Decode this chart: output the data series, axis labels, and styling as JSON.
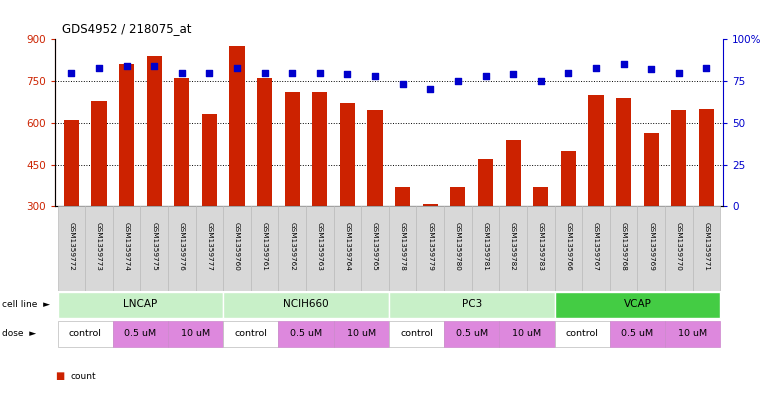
{
  "title": "GDS4952 / 218075_at",
  "samples": [
    "GSM1359772",
    "GSM1359773",
    "GSM1359774",
    "GSM1359775",
    "GSM1359776",
    "GSM1359777",
    "GSM1359760",
    "GSM1359761",
    "GSM1359762",
    "GSM1359763",
    "GSM1359764",
    "GSM1359765",
    "GSM1359778",
    "GSM1359779",
    "GSM1359780",
    "GSM1359781",
    "GSM1359782",
    "GSM1359783",
    "GSM1359766",
    "GSM1359767",
    "GSM1359768",
    "GSM1359769",
    "GSM1359770",
    "GSM1359771"
  ],
  "counts": [
    610,
    680,
    810,
    840,
    760,
    630,
    875,
    760,
    710,
    710,
    670,
    645,
    370,
    310,
    370,
    470,
    540,
    370,
    500,
    700,
    690,
    565,
    645,
    650
  ],
  "percentiles": [
    80,
    83,
    84,
    84,
    80,
    80,
    83,
    80,
    80,
    80,
    79,
    78,
    73,
    70,
    75,
    78,
    79,
    75,
    80,
    83,
    85,
    82,
    80,
    83
  ],
  "bar_color": "#cc2200",
  "dot_color": "#0000cc",
  "ylim_left": [
    300,
    900
  ],
  "ylim_right": [
    0,
    100
  ],
  "yticks_left": [
    300,
    450,
    600,
    750,
    900
  ],
  "yticks_right": [
    0,
    25,
    50,
    75,
    100
  ],
  "ytick_labels_right": [
    "0",
    "25",
    "50",
    "75",
    "100%"
  ],
  "grid_lines": [
    450,
    600,
    750
  ],
  "cell_line_groups": [
    {
      "name": "LNCAP",
      "start": 0,
      "end": 5,
      "color": "#c8f0c8"
    },
    {
      "name": "NCIH660",
      "start": 6,
      "end": 11,
      "color": "#c8f0c8"
    },
    {
      "name": "PC3",
      "start": 12,
      "end": 17,
      "color": "#c8f0c8"
    },
    {
      "name": "VCAP",
      "start": 18,
      "end": 23,
      "color": "#44cc44"
    }
  ],
  "dose_groups": [
    {
      "name": "control",
      "start": 0,
      "end": 1,
      "color": "#ffffff"
    },
    {
      "name": "0.5 uM",
      "start": 2,
      "end": 3,
      "color": "#dd88dd"
    },
    {
      "name": "10 uM",
      "start": 4,
      "end": 5,
      "color": "#dd88dd"
    },
    {
      "name": "control",
      "start": 6,
      "end": 7,
      "color": "#ffffff"
    },
    {
      "name": "0.5 uM",
      "start": 8,
      "end": 9,
      "color": "#dd88dd"
    },
    {
      "name": "10 uM",
      "start": 10,
      "end": 11,
      "color": "#dd88dd"
    },
    {
      "name": "control",
      "start": 12,
      "end": 13,
      "color": "#ffffff"
    },
    {
      "name": "0.5 uM",
      "start": 14,
      "end": 15,
      "color": "#dd88dd"
    },
    {
      "name": "10 uM",
      "start": 16,
      "end": 17,
      "color": "#dd88dd"
    },
    {
      "name": "control",
      "start": 18,
      "end": 19,
      "color": "#ffffff"
    },
    {
      "name": "0.5 uM",
      "start": 20,
      "end": 21,
      "color": "#dd88dd"
    },
    {
      "name": "10 uM",
      "start": 22,
      "end": 23,
      "color": "#dd88dd"
    }
  ],
  "background_color": "#ffffff",
  "label_bg_color": "#d8d8d8",
  "label_border_color": "#bbbbbb"
}
